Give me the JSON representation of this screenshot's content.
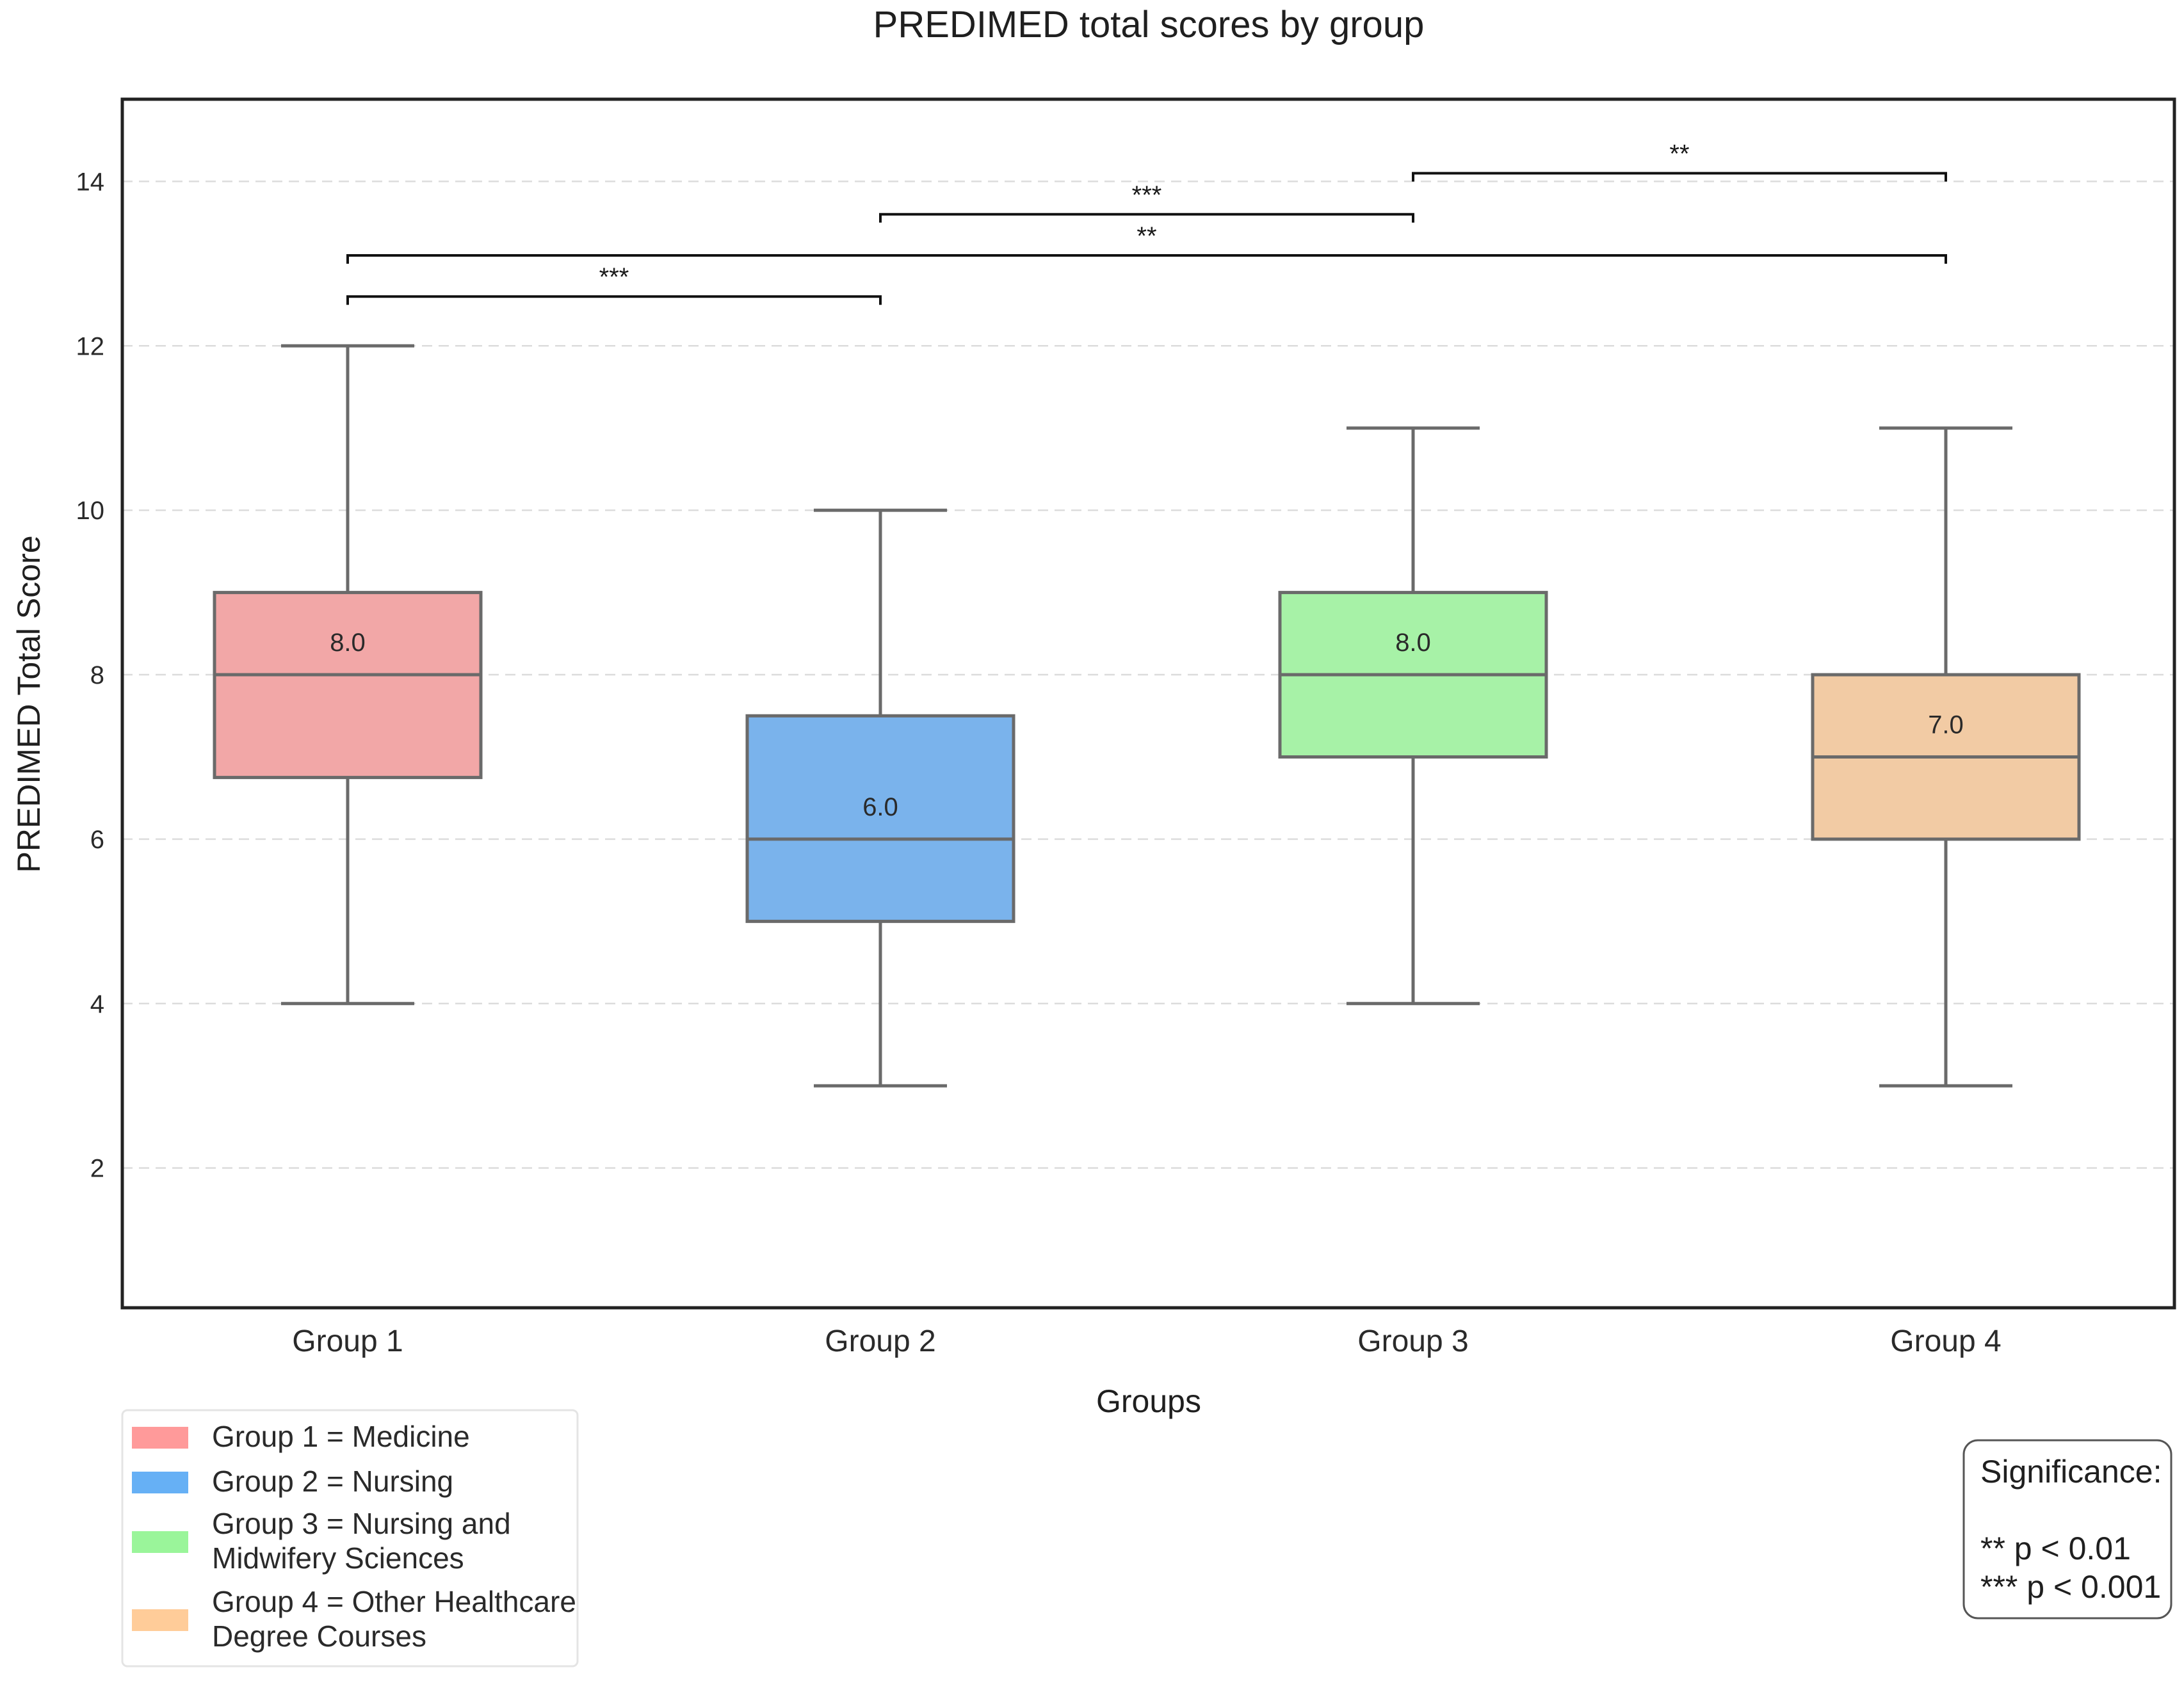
{
  "chart_data": {
    "type": "boxplot",
    "title": "PREDIMED total scores by group",
    "xlabel": "Groups",
    "ylabel": "PREDIMED Total Score",
    "ylim": [
      0.3,
      15
    ],
    "yticks": [
      2,
      4,
      6,
      8,
      10,
      12,
      14
    ],
    "grid": true,
    "categories": [
      "Group 1",
      "Group 2",
      "Group 3",
      "Group 4"
    ],
    "boxes": [
      {
        "category": "Group 1",
        "whisker_low": 4,
        "q1": 6.75,
        "median": 8.0,
        "q3": 9.0,
        "whisker_high": 12,
        "median_label": "8.0",
        "color": "#f2a7a7"
      },
      {
        "category": "Group 2",
        "whisker_low": 3,
        "q1": 5.0,
        "median": 6.0,
        "q3": 7.5,
        "whisker_high": 10,
        "median_label": "6.0",
        "color": "#7ab3ec"
      },
      {
        "category": "Group 3",
        "whisker_low": 4,
        "q1": 7.0,
        "median": 8.0,
        "q3": 9.0,
        "whisker_high": 11,
        "median_label": "8.0",
        "color": "#a7f2a7"
      },
      {
        "category": "Group 4",
        "whisker_low": 3,
        "q1": 6.0,
        "median": 7.0,
        "q3": 8.0,
        "whisker_high": 11,
        "median_label": "7.0",
        "color": "#f2cba4"
      }
    ],
    "significance_brackets": [
      {
        "from": 0,
        "to": 1,
        "y": 12.6,
        "label": "***"
      },
      {
        "from": 0,
        "to": 3,
        "y": 13.1,
        "label": "**"
      },
      {
        "from": 1,
        "to": 2,
        "y": 13.6,
        "label": "***"
      },
      {
        "from": 2,
        "to": 3,
        "y": 14.1,
        "label": "**"
      }
    ],
    "legend": {
      "location": "lower-left",
      "entries": [
        {
          "lines": [
            "Group 1 = Medicine"
          ],
          "color": "#ff9a9a"
        },
        {
          "lines": [
            "Group 2 = Nursing"
          ],
          "color": "#66b0f5"
        },
        {
          "lines": [
            "Group 3 = Nursing and",
            "Midwifery Sciences"
          ],
          "color": "#9af59a"
        },
        {
          "lines": [
            "Group 4 = Other Healthcare",
            "Degree Courses"
          ],
          "color": "#ffcc99"
        }
      ]
    },
    "significance_box": {
      "location": "lower-right",
      "lines": [
        "Significance:",
        "",
        "** p < 0.01",
        "*** p < 0.001"
      ]
    }
  }
}
